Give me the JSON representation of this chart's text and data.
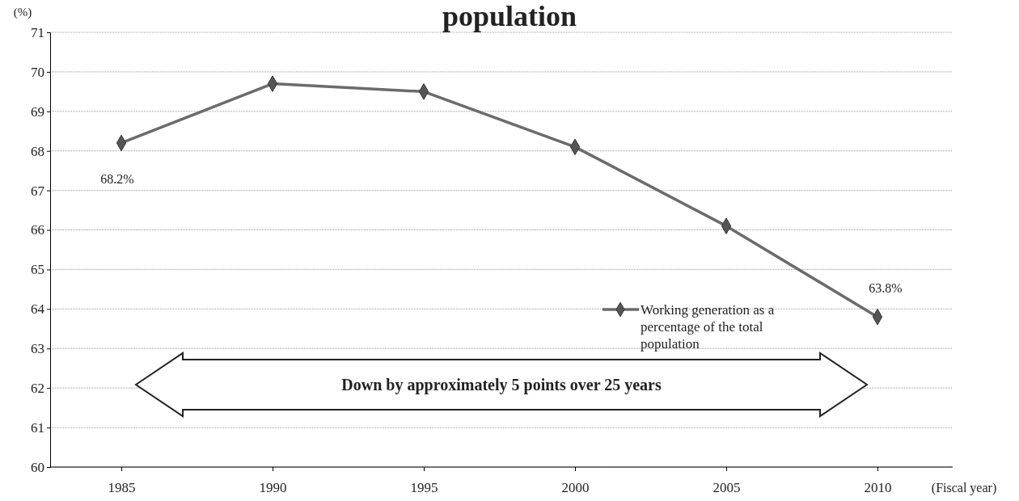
{
  "chart_data": {
    "type": "line",
    "title": "population",
    "ylabel": "(%)",
    "xlabel": "(Fiscal year)",
    "categories": [
      "1985",
      "1990",
      "1995",
      "2000",
      "2005",
      "2010"
    ],
    "series": [
      {
        "name": "Working generation as a percentage of the total population",
        "color": "#6b6b6b",
        "values": [
          68.2,
          69.7,
          69.5,
          68.1,
          66.1,
          63.8
        ],
        "value_labels": [
          "68.2%",
          null,
          null,
          null,
          null,
          "63.8%"
        ]
      }
    ],
    "ylim": [
      60,
      71
    ],
    "yticks": [
      60,
      61,
      62,
      63,
      64,
      65,
      66,
      67,
      68,
      69,
      70,
      71
    ],
    "grid": "y",
    "legend": "bottom right",
    "marker": "diamond",
    "line_style": "solid",
    "annotations": [
      "Down by approximately 5 points over 25 years"
    ]
  }
}
